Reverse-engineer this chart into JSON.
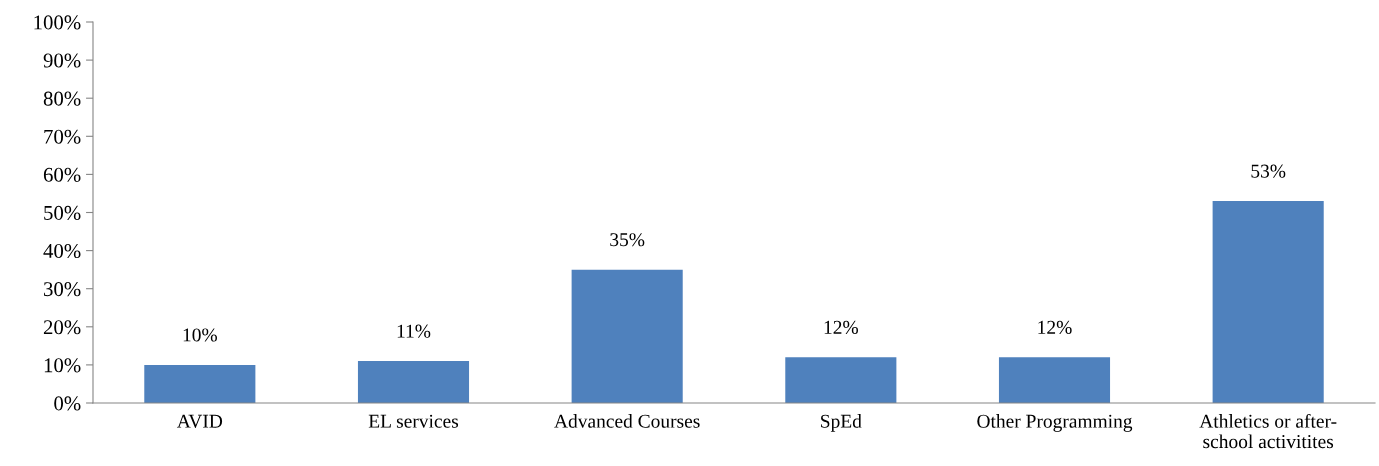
{
  "chart_data": {
    "type": "bar",
    "categories": [
      "AVID",
      "EL services",
      "Advanced Courses",
      "SpEd",
      "Other Programming",
      "Athletics or after-school activitites"
    ],
    "values": [
      10,
      11,
      35,
      12,
      12,
      53
    ],
    "value_labels": [
      "10%",
      "11%",
      "35%",
      "12%",
      "12%",
      "53%"
    ],
    "color": "#4f81bd",
    "ylim": [
      0,
      100
    ],
    "yticks": [
      {
        "value": 0,
        "label": "0%"
      },
      {
        "value": 10,
        "label": "10%"
      },
      {
        "value": 20,
        "label": "20%"
      },
      {
        "value": 30,
        "label": "30%"
      },
      {
        "value": 40,
        "label": "40%"
      },
      {
        "value": 50,
        "label": "50%"
      },
      {
        "value": 60,
        "label": "60%"
      },
      {
        "value": 70,
        "label": "70%"
      },
      {
        "value": 80,
        "label": "80%"
      },
      {
        "value": 90,
        "label": "90%"
      },
      {
        "value": 100,
        "label": "100%"
      }
    ],
    "grid": false,
    "legend": false
  }
}
